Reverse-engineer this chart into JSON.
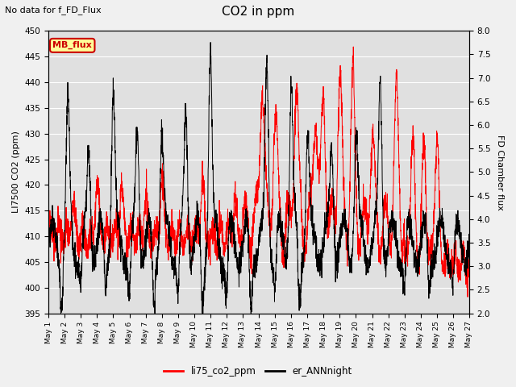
{
  "title": "CO2 in ppm",
  "suptitle": "No data for f_FD_Flux",
  "ylabel_left": "LI7500 CO2 (ppm)",
  "ylabel_right": "FD Chamber flux",
  "ylim_left": [
    395,
    450
  ],
  "ylim_right": [
    2.0,
    8.0
  ],
  "yticks_left": [
    395,
    400,
    405,
    410,
    415,
    420,
    425,
    430,
    435,
    440,
    445,
    450
  ],
  "yticks_right": [
    2.0,
    2.5,
    3.0,
    3.5,
    4.0,
    4.5,
    5.0,
    5.5,
    6.0,
    6.5,
    7.0,
    7.5,
    8.0
  ],
  "color_li75": "#ff0000",
  "color_er": "#000000",
  "legend_li75": "li75_co2_ppm",
  "legend_er": "er_ANNnight",
  "mb_flux_color": "#cc0000",
  "mb_flux_bg": "#ffff99",
  "background_color": "#e0e0e0",
  "grid_color": "#ffffff",
  "fig_bg": "#f0f0f0",
  "n_points": 3000,
  "days": 26
}
